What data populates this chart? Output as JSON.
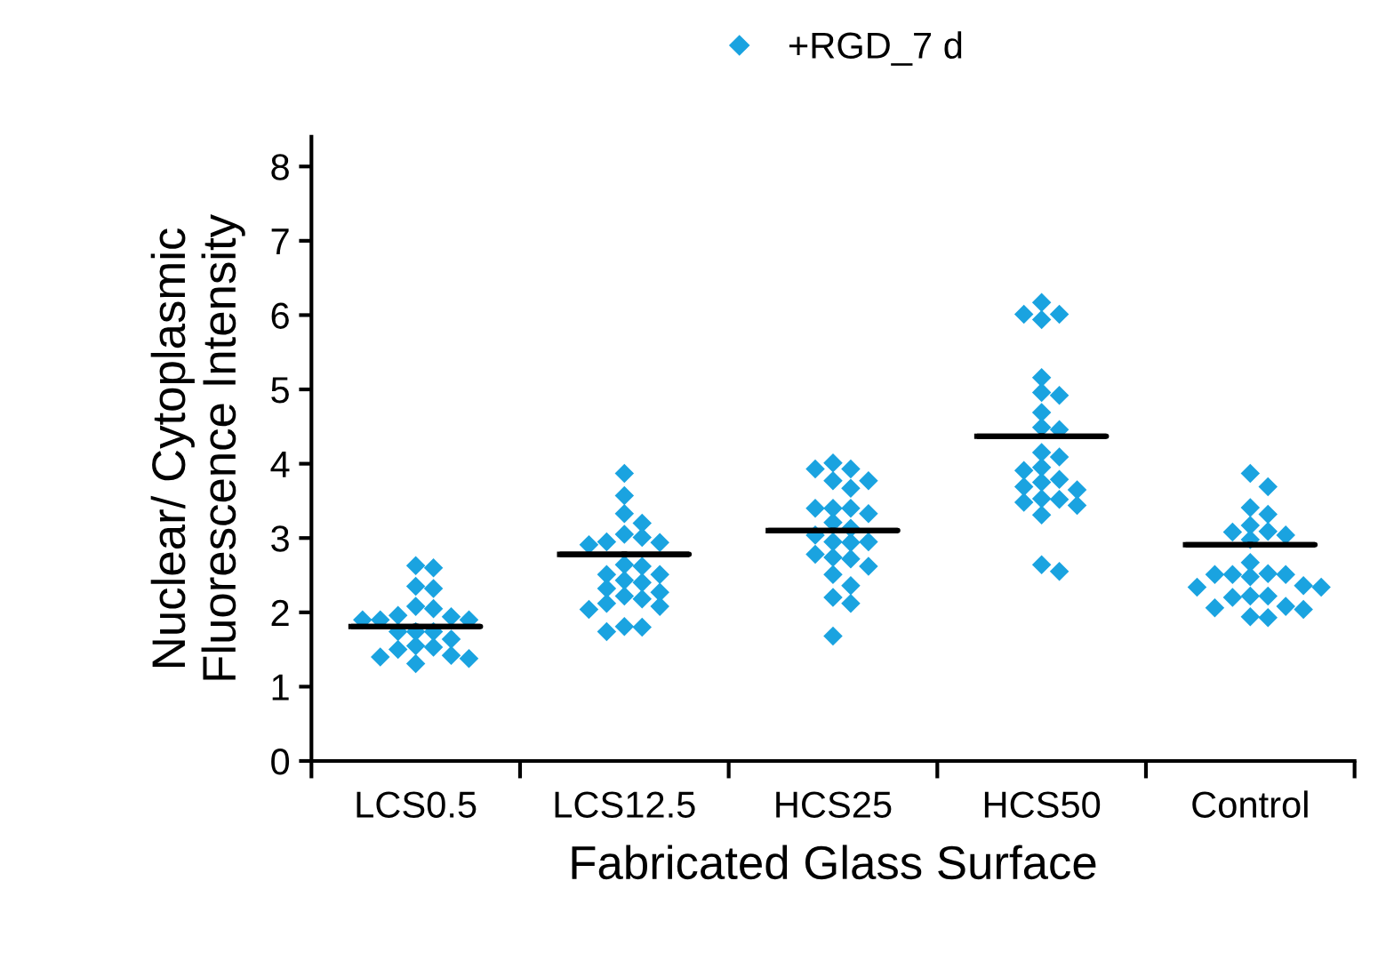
{
  "chart_data": {
    "type": "scatter",
    "xlabel": "Fabricated Glass Surface",
    "ylabel": "Nuclear/ Cytoplasmic\nFluorescence Intensity",
    "categories": [
      "LCS0.5",
      "LCS12.5",
      "HCS25",
      "HCS50",
      "Control"
    ],
    "ylim": [
      0,
      8.4
    ],
    "yticks": [
      0,
      1,
      2,
      3,
      4,
      5,
      6,
      7,
      8
    ],
    "legend": "top",
    "marker": "diamond",
    "grid": false,
    "series": [
      {
        "name": "+RGD_7 d",
        "color": "#1aa3e0",
        "x": [
          "LCS0.5",
          "LCS0.5",
          "LCS0.5",
          "LCS0.5",
          "LCS0.5",
          "LCS0.5",
          "LCS0.5",
          "LCS0.5",
          "LCS0.5",
          "LCS0.5",
          "LCS0.5",
          "LCS0.5",
          "LCS0.5",
          "LCS0.5",
          "LCS0.5",
          "LCS0.5",
          "LCS0.5",
          "LCS0.5",
          "LCS0.5",
          "LCS0.5",
          "LCS0.5",
          "LCS0.5",
          "LCS12.5",
          "LCS12.5",
          "LCS12.5",
          "LCS12.5",
          "LCS12.5",
          "LCS12.5",
          "LCS12.5",
          "LCS12.5",
          "LCS12.5",
          "LCS12.5",
          "LCS12.5",
          "LCS12.5",
          "LCS12.5",
          "LCS12.5",
          "LCS12.5",
          "LCS12.5",
          "LCS12.5",
          "LCS12.5",
          "LCS12.5",
          "LCS12.5",
          "LCS12.5",
          "LCS12.5",
          "LCS12.5",
          "LCS12.5",
          "LCS12.5",
          "HCS25",
          "HCS25",
          "HCS25",
          "HCS25",
          "HCS25",
          "HCS25",
          "HCS25",
          "HCS25",
          "HCS25",
          "HCS25",
          "HCS25",
          "HCS25",
          "HCS25",
          "HCS25",
          "HCS25",
          "HCS25",
          "HCS25",
          "HCS25",
          "HCS25",
          "HCS25",
          "HCS25",
          "HCS25",
          "HCS25",
          "HCS25",
          "HCS25",
          "HCS50",
          "HCS50",
          "HCS50",
          "HCS50",
          "HCS50",
          "HCS50",
          "HCS50",
          "HCS50",
          "HCS50",
          "HCS50",
          "HCS50",
          "HCS50",
          "HCS50",
          "HCS50",
          "HCS50",
          "HCS50",
          "HCS50",
          "HCS50",
          "HCS50",
          "HCS50",
          "HCS50",
          "HCS50",
          "HCS50",
          "HCS50",
          "HCS50",
          "Control",
          "Control",
          "Control",
          "Control",
          "Control",
          "Control",
          "Control",
          "Control",
          "Control",
          "Control",
          "Control",
          "Control",
          "Control",
          "Control",
          "Control",
          "Control",
          "Control",
          "Control",
          "Control",
          "Control",
          "Control",
          "Control",
          "Control",
          "Control",
          "Control",
          "Control"
        ],
        "values": [
          2.63,
          2.6,
          2.32,
          2.35,
          2.08,
          2.05,
          1.9,
          1.9,
          1.94,
          1.96,
          1.9,
          1.74,
          1.74,
          1.74,
          1.64,
          1.5,
          1.53,
          1.55,
          1.4,
          1.38,
          1.42,
          1.31,
          3.87,
          3.57,
          3.2,
          3.33,
          3.05,
          3.01,
          2.91,
          2.94,
          2.95,
          2.64,
          2.62,
          2.4,
          2.43,
          2.51,
          2.51,
          2.22,
          2.27,
          2.32,
          2.08,
          2.12,
          2.18,
          2.04,
          1.81,
          1.8,
          1.74,
          4.01,
          3.93,
          3.77,
          3.77,
          3.93,
          3.67,
          3.33,
          3.4,
          3.4,
          3.4,
          3.21,
          3.13,
          2.95,
          2.95,
          3.04,
          2.94,
          2.74,
          2.78,
          2.72,
          2.62,
          2.51,
          2.36,
          2.12,
          2.2,
          1.68,
          6.17,
          5.94,
          6.01,
          6.01,
          5.16,
          4.92,
          4.96,
          4.69,
          4.46,
          4.49,
          4.09,
          4.15,
          3.79,
          3.91,
          3.95,
          3.65,
          3.69,
          3.75,
          3.48,
          3.52,
          3.53,
          3.44,
          3.31,
          2.64,
          2.55,
          3.87,
          3.69,
          3.17,
          3.32,
          3.41,
          2.98,
          3.04,
          3.08,
          3.09,
          2.67,
          2.48,
          2.52,
          2.51,
          2.51,
          2.51,
          2.34,
          2.34,
          2.36,
          2.22,
          2.22,
          2.2,
          2.06,
          2.08,
          2.04,
          1.93,
          1.94
        ]
      },
      {
        "type": "box",
        "color": "#000000",
        "boxes": [
          {
            "low": 1.81,
            "q1": 1.81,
            "median": 1.81,
            "q3": 1.81,
            "high": 1.81
          },
          {
            "low": 2.78,
            "q1": 2.78,
            "median": 2.78,
            "q3": 2.78,
            "high": 2.78
          },
          {
            "low": 3.1,
            "q1": 3.1,
            "median": 3.1,
            "q3": 3.1,
            "high": 3.1
          },
          {
            "low": 4.37,
            "q1": 4.37,
            "median": 4.37,
            "q3": 4.37,
            "high": 4.37
          },
          {
            "low": 2.91,
            "q1": 2.91,
            "median": 2.91,
            "q3": 2.91,
            "high": 2.91
          }
        ]
      }
    ]
  }
}
